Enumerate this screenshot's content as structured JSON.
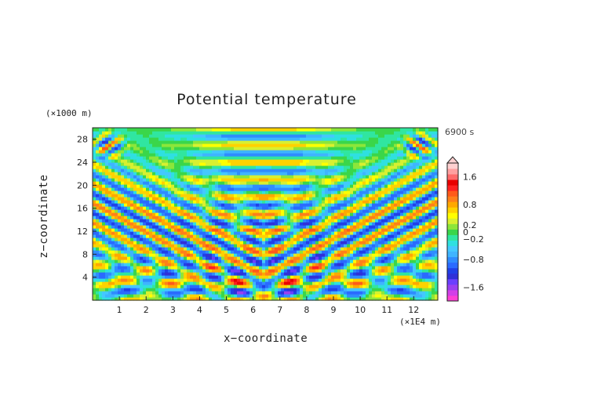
{
  "chart_data": {
    "type": "heatmap",
    "title": "Potential temperature",
    "xlabel": "x−coordinate",
    "ylabel": "z−coordinate",
    "x_unit": "(×1E4 m)",
    "y_unit": "(×1000 m)",
    "time_label": "6900 s",
    "xlim": [
      0,
      12.9
    ],
    "ylim": [
      0,
      30
    ],
    "x_ticks": [
      "1",
      "2",
      "3",
      "4",
      "5",
      "6",
      "7",
      "8",
      "9",
      "10",
      "11",
      "12"
    ],
    "y_ticks": [
      "4",
      "8",
      "12",
      "16",
      "20",
      "24",
      "28"
    ],
    "colorbar_ticks": [
      "1.6",
      "0.8",
      "0.2",
      "0",
      "−0.2",
      "−0.8",
      "−1.6"
    ],
    "colorbar_levels": [
      -2.0,
      -1.8,
      -1.6,
      -1.4,
      -1.2,
      -1.0,
      -0.8,
      -0.6,
      -0.4,
      -0.3,
      -0.2,
      -0.1,
      0,
      0.1,
      0.2,
      0.3,
      0.4,
      0.6,
      0.8,
      1.0,
      1.2,
      1.4,
      1.6,
      1.8,
      2.0
    ],
    "colorbar_colors": [
      "#ff3fd4",
      "#d23fe8",
      "#9a3ff0",
      "#6a3fff",
      "#3030d8",
      "#2040e8",
      "#2a6aff",
      "#2f8cff",
      "#3fb4ff",
      "#44c8ff",
      "#2fe0e0",
      "#30e6a0",
      "#3ad64a",
      "#8ce63a",
      "#d8f030",
      "#ffff00",
      "#ffd200",
      "#ffa800",
      "#ff7f1a",
      "#ff5a1a",
      "#ff2020",
      "#e80000",
      "#ff6a6a",
      "#ffa0a0",
      "#ffd0d0"
    ],
    "description_of_field": "symmetric gravity-wave pattern of potential temperature anomaly about x = 6.4"
  }
}
